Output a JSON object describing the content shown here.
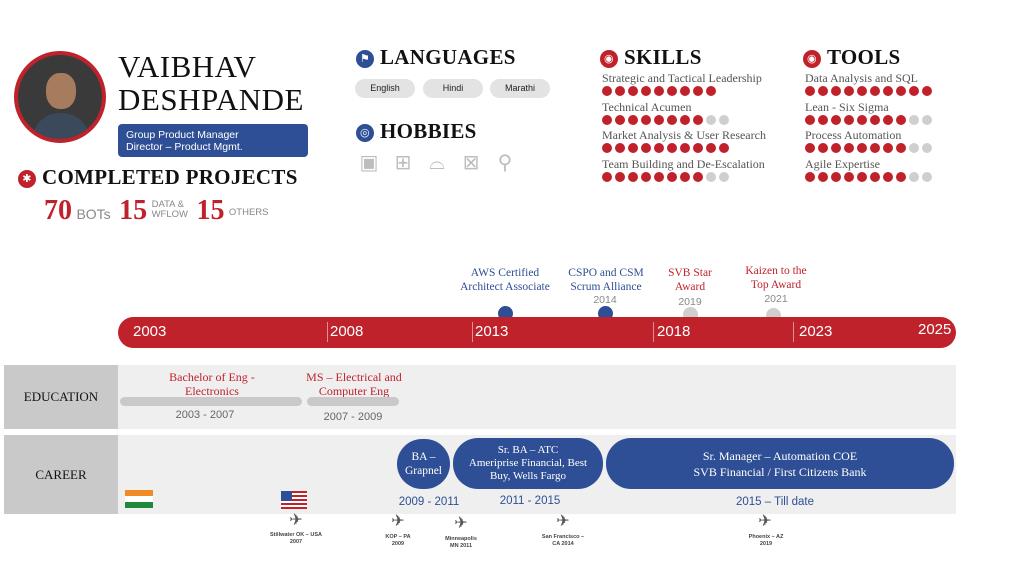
{
  "profile": {
    "first_name": "VAIBHAV",
    "last_name": "DESHPANDE",
    "title_line1": "Group Product Manager",
    "title_line2": "Director – Product Mgmt."
  },
  "projects": {
    "heading": "COMPLETED PROJECTS",
    "bots_value": "70",
    "bots_label": "BOTs",
    "data_value": "15",
    "data_label_1": "DATA &",
    "data_label_2": "WFLOW",
    "others_value": "15",
    "others_label": "OTHERS"
  },
  "languages": {
    "heading": "LANGUAGES",
    "items": [
      "English",
      "Hindi",
      "Marathi"
    ]
  },
  "hobbies": {
    "heading": "HOBBIES",
    "icons": [
      "camera-icon",
      "board-game-icon",
      "cooking-icon",
      "travel-bag-icon",
      "microphone-icon"
    ]
  },
  "skills": {
    "heading": "SKILLS",
    "items": [
      {
        "label": "Strategic and Tactical Leadership",
        "level": 9,
        "max": 9
      },
      {
        "label": "Technical Acumen",
        "level": 8,
        "max": 10
      },
      {
        "label": "Market Analysis & User Research",
        "level": 10,
        "max": 10
      },
      {
        "label": "Team Building and De-Escalation",
        "level": 8,
        "max": 10
      }
    ]
  },
  "tools": {
    "heading": "TOOLS",
    "items": [
      {
        "label": "Data Analysis and SQL",
        "level": 10,
        "max": 10
      },
      {
        "label": "Lean - Six Sigma",
        "level": 8,
        "max": 10
      },
      {
        "label": "Process Automation",
        "level": 8,
        "max": 10
      },
      {
        "label": "Agile Expertise",
        "level": 8,
        "max": 10
      }
    ]
  },
  "timeline": {
    "years": [
      "2003",
      "2008",
      "2013",
      "2018",
      "2023",
      "2025"
    ],
    "certifications": [
      {
        "line1": "AWS Certified",
        "line2": "Architect Associate",
        "year": "",
        "color": "navy"
      },
      {
        "line1": "CSPO and CSM",
        "line2": "Scrum Alliance",
        "year": "2014",
        "color": "navy"
      },
      {
        "line1": "SVB Star",
        "line2": "Award",
        "year": "2019",
        "color": "red"
      },
      {
        "line1": "Kaizen to the",
        "line2": "Top Award",
        "year": "2021",
        "color": "red"
      }
    ]
  },
  "education": {
    "label": "EDUCATION",
    "items": [
      {
        "line1": "Bachelor of Eng -",
        "line2": "Electronics",
        "years": "2003 - 2007"
      },
      {
        "line1": "MS – Electrical and",
        "line2": "Computer Eng",
        "years": "2007 - 2009"
      }
    ]
  },
  "career": {
    "label": "CAREER",
    "items": [
      {
        "line1": "BA –",
        "line2": "Grapnel",
        "line3": "",
        "years": "2009 - 2011"
      },
      {
        "line1": "Sr. BA – ATC",
        "line2": "Ameriprise Financial, Best",
        "line3": "Buy, Wells Fargo",
        "years": "2011 - 2015"
      },
      {
        "line1": "Sr. Manager – Automation COE",
        "line2": "SVB Financial / First Citizens Bank",
        "line3": "",
        "years": "2015 – Till date"
      }
    ]
  },
  "locations": [
    {
      "line1": "Stillwater OK – USA",
      "line2": "2007"
    },
    {
      "line1": "KOP – PA",
      "line2": "2009"
    },
    {
      "line1": "Minneapolis",
      "line2": "MN 2011"
    },
    {
      "line1": "San Francisco –",
      "line2": "CA 2014"
    },
    {
      "line1": "Phoenix – AZ",
      "line2": "2019"
    }
  ],
  "colors": {
    "accent_red": "#c0222c",
    "accent_navy": "#2e4f95",
    "band_gray": "#efefef"
  }
}
